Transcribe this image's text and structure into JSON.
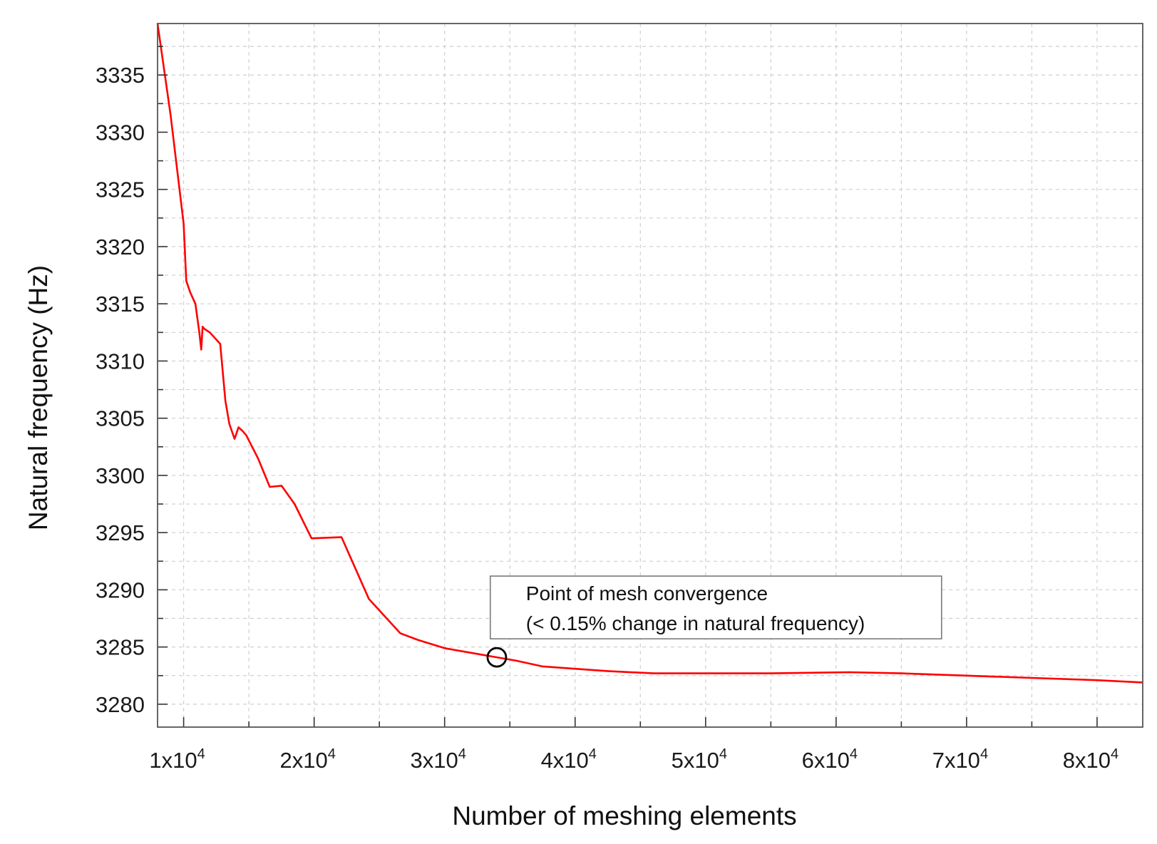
{
  "chart_data": {
    "type": "line",
    "title": "",
    "xlabel": "Number of meshing elements",
    "ylabel": "Natural frequency (Hz)",
    "xlim": [
      8000,
      83500
    ],
    "ylim": [
      3278,
      3339.5
    ],
    "grid": true,
    "x_ticks": [
      {
        "value": 10000,
        "mantissa": "1x10",
        "exp": "4"
      },
      {
        "value": 20000,
        "mantissa": "2x10",
        "exp": "4"
      },
      {
        "value": 30000,
        "mantissa": "3x10",
        "exp": "4"
      },
      {
        "value": 40000,
        "mantissa": "4x10",
        "exp": "4"
      },
      {
        "value": 50000,
        "mantissa": "5x10",
        "exp": "4"
      },
      {
        "value": 60000,
        "mantissa": "6x10",
        "exp": "4"
      },
      {
        "value": 70000,
        "mantissa": "7x10",
        "exp": "4"
      },
      {
        "value": 80000,
        "mantissa": "8x10",
        "exp": "4"
      }
    ],
    "y_ticks": [
      "3280",
      "3285",
      "3290",
      "3295",
      "3300",
      "3305",
      "3310",
      "3315",
      "3320",
      "3325",
      "3330",
      "3335"
    ],
    "series": [
      {
        "color": "#ff0000",
        "x": [
          8000,
          9000,
          10000,
          10200,
          10500,
          10900,
          11200,
          11350,
          11450,
          11600,
          12000,
          12800,
          13200,
          13500,
          13900,
          14000,
          14200,
          14500,
          14800,
          15700,
          16600,
          17500,
          18500,
          19800,
          22100,
          24200,
          26600,
          28000,
          30000,
          32500,
          34000,
          35500,
          37500,
          40000,
          42500,
          46000,
          50000,
          55000,
          61000,
          65000,
          70000,
          75000,
          80000,
          83500
        ],
        "y": [
          3339.5,
          3331.5,
          3322,
          3317,
          3316,
          3315,
          3312.5,
          3311,
          3313,
          3312.8,
          3312.5,
          3311.5,
          3306.5,
          3304.5,
          3303.2,
          3303.5,
          3304.2,
          3303.9,
          3303.5,
          3301.5,
          3299,
          3299.1,
          3297.5,
          3294.5,
          3294.6,
          3289.2,
          3286.2,
          3285.6,
          3284.9,
          3284.4,
          3284.1,
          3283.8,
          3283.3,
          3283.1,
          3282.9,
          3282.7,
          3282.7,
          3282.7,
          3282.8,
          3282.7,
          3282.5,
          3282.3,
          3282.1,
          3281.9
        ]
      }
    ],
    "annotations": [
      {
        "lines": [
          "Point of mesh convergence",
          "(< 0.15% change in natural frequency)"
        ]
      }
    ],
    "marker": {
      "x": 34000,
      "y": 3284.1,
      "shape": "circle",
      "color": "#000000"
    }
  }
}
